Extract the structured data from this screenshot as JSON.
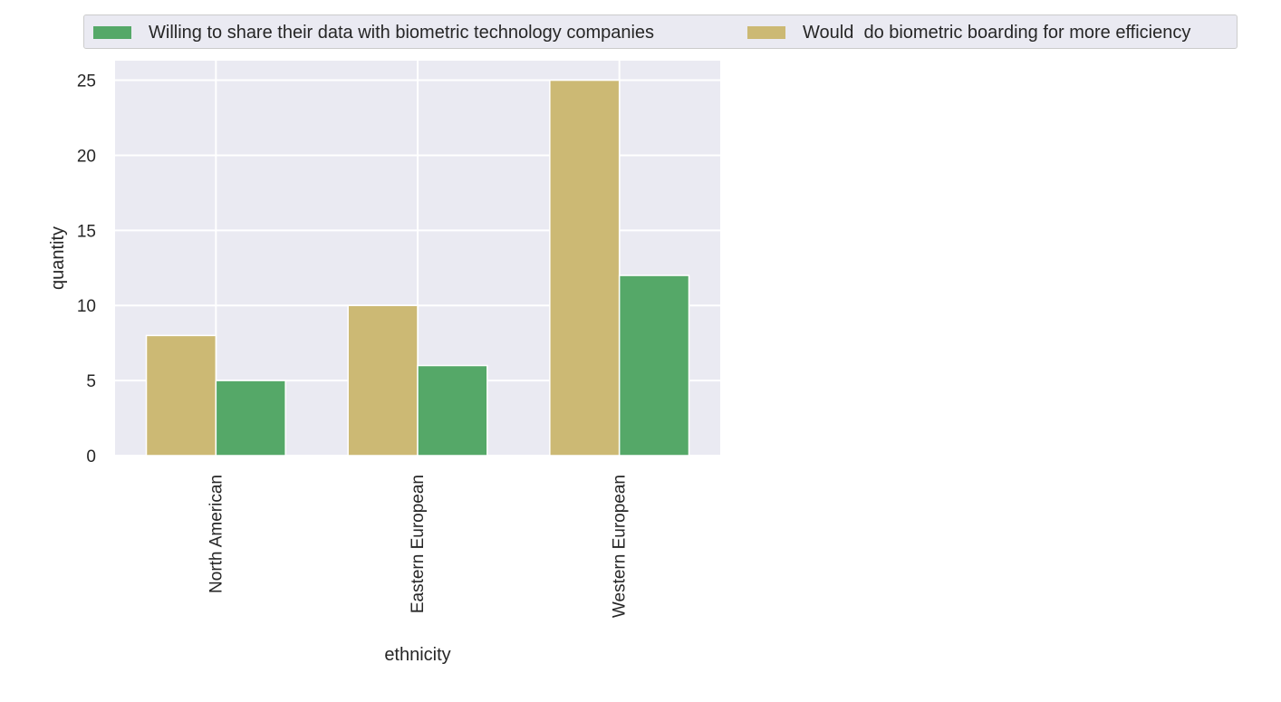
{
  "chart_data": {
    "type": "bar",
    "categories": [
      "North American",
      "Eastern European",
      "Western European"
    ],
    "series": [
      {
        "name": "Would  do biometric boarding for more efficiency",
        "values": [
          8,
          10,
          25
        ],
        "color": "#ccb974"
      },
      {
        "name": "Willing to share their data with biometric technology companies",
        "values": [
          5,
          6,
          12
        ],
        "color": "#55a868"
      }
    ],
    "legend_order": [
      "Willing to share their data with biometric technology companies",
      "Would  do biometric boarding for more efficiency"
    ],
    "xlabel": "ethnicity",
    "ylabel": "quantity",
    "ylim": [
      0,
      26.3
    ],
    "yticks": [
      0,
      5,
      10,
      15,
      20,
      25
    ],
    "grid": true,
    "legend_position": "top",
    "background_color": "#eaeaf2",
    "grid_color": "#ffffff"
  }
}
